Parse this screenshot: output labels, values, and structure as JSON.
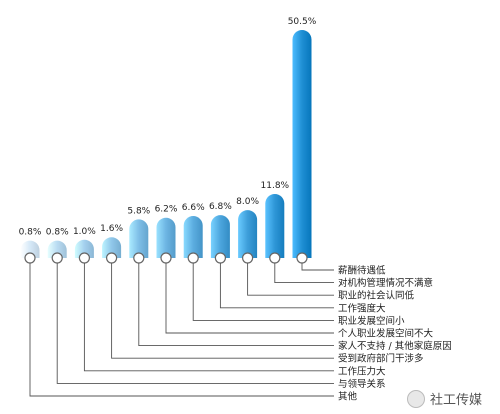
{
  "chart_data": {
    "type": "bar",
    "categories": [
      "其他",
      "与领导关系",
      "工作压力大",
      "受到政府部门干涉多",
      "家人不支持 / 其他家庭原因",
      "个人职业发展空间不大",
      "职业发展空间小",
      "工作强度大",
      "职业的社会认同低",
      "对机构管理情况不满意",
      "薪酬待遇低"
    ],
    "values": [
      0.8,
      0.8,
      1.0,
      1.6,
      5.8,
      6.2,
      6.6,
      6.8,
      8.0,
      11.8,
      50.5
    ],
    "value_labels": [
      "0.8%",
      "0.8%",
      "1.0%",
      "1.6%",
      "5.8%",
      "6.2%",
      "6.6%",
      "6.8%",
      "8.0%",
      "11.8%",
      "50.5%"
    ],
    "title": "",
    "xlabel": "",
    "ylabel": "",
    "ylim": [
      0,
      50.5
    ],
    "legend": "none",
    "grid": false,
    "colors": {
      "bar_light": "#d6e9f8",
      "bar_dark": "#1f8fd4",
      "connector": "#555555",
      "label_text": "#222222"
    }
  },
  "watermark": {
    "text": "社工传媒",
    "icon": "wechat-icon"
  }
}
